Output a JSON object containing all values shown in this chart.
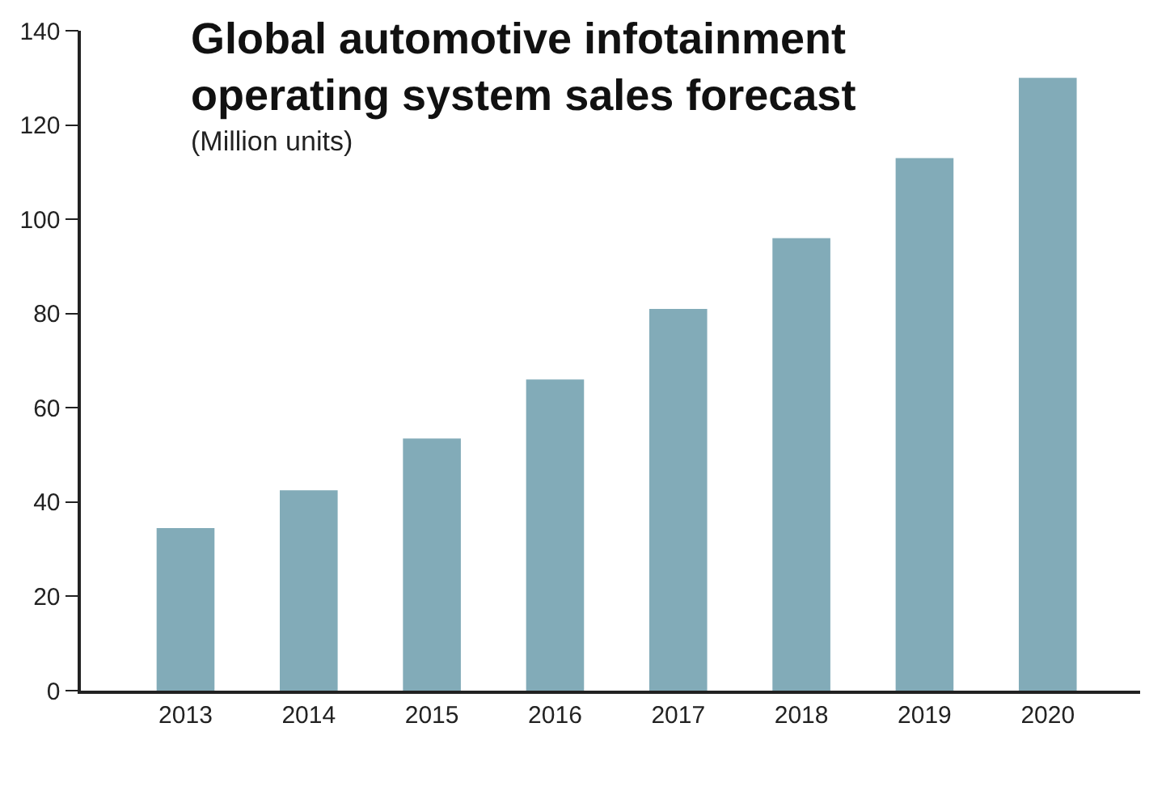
{
  "chart_data": {
    "type": "bar",
    "title": "Global automotive infotainment\noperating system sales forecast",
    "subtitle": "(Million units)",
    "categories": [
      "2013",
      "2014",
      "2015",
      "2016",
      "2017",
      "2018",
      "2019",
      "2020"
    ],
    "values": [
      34.5,
      42.5,
      53.5,
      66,
      81,
      96,
      113,
      130
    ],
    "color": "#82abb8",
    "ylim": [
      0,
      140
    ],
    "yticks": [
      0,
      20,
      40,
      60,
      80,
      100,
      120,
      140
    ]
  }
}
